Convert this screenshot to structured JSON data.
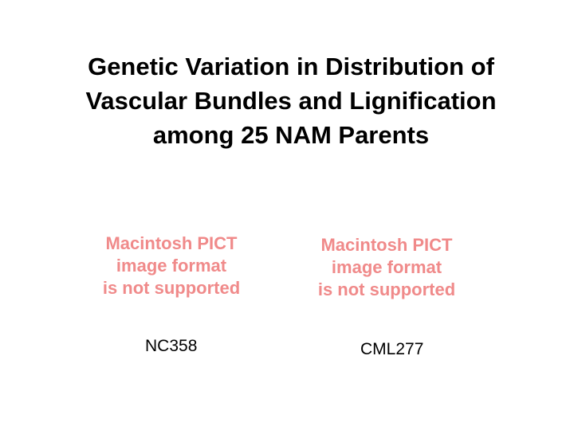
{
  "slide": {
    "title_lines": [
      "Genetic Variation in Distribution of",
      "Vascular Bundles and Lignification",
      "among 25 NAM Parents"
    ],
    "images": [
      {
        "placeholder_lines": [
          "Macintosh PICT",
          "image format",
          "is not supported"
        ],
        "caption": "NC358"
      },
      {
        "placeholder_lines": [
          "Macintosh PICT",
          "image format",
          "is not supported"
        ],
        "caption": "CML277"
      }
    ],
    "colors": {
      "background": "#ffffff",
      "title": "#000000",
      "placeholder_text": "#f08a8a"
    }
  }
}
